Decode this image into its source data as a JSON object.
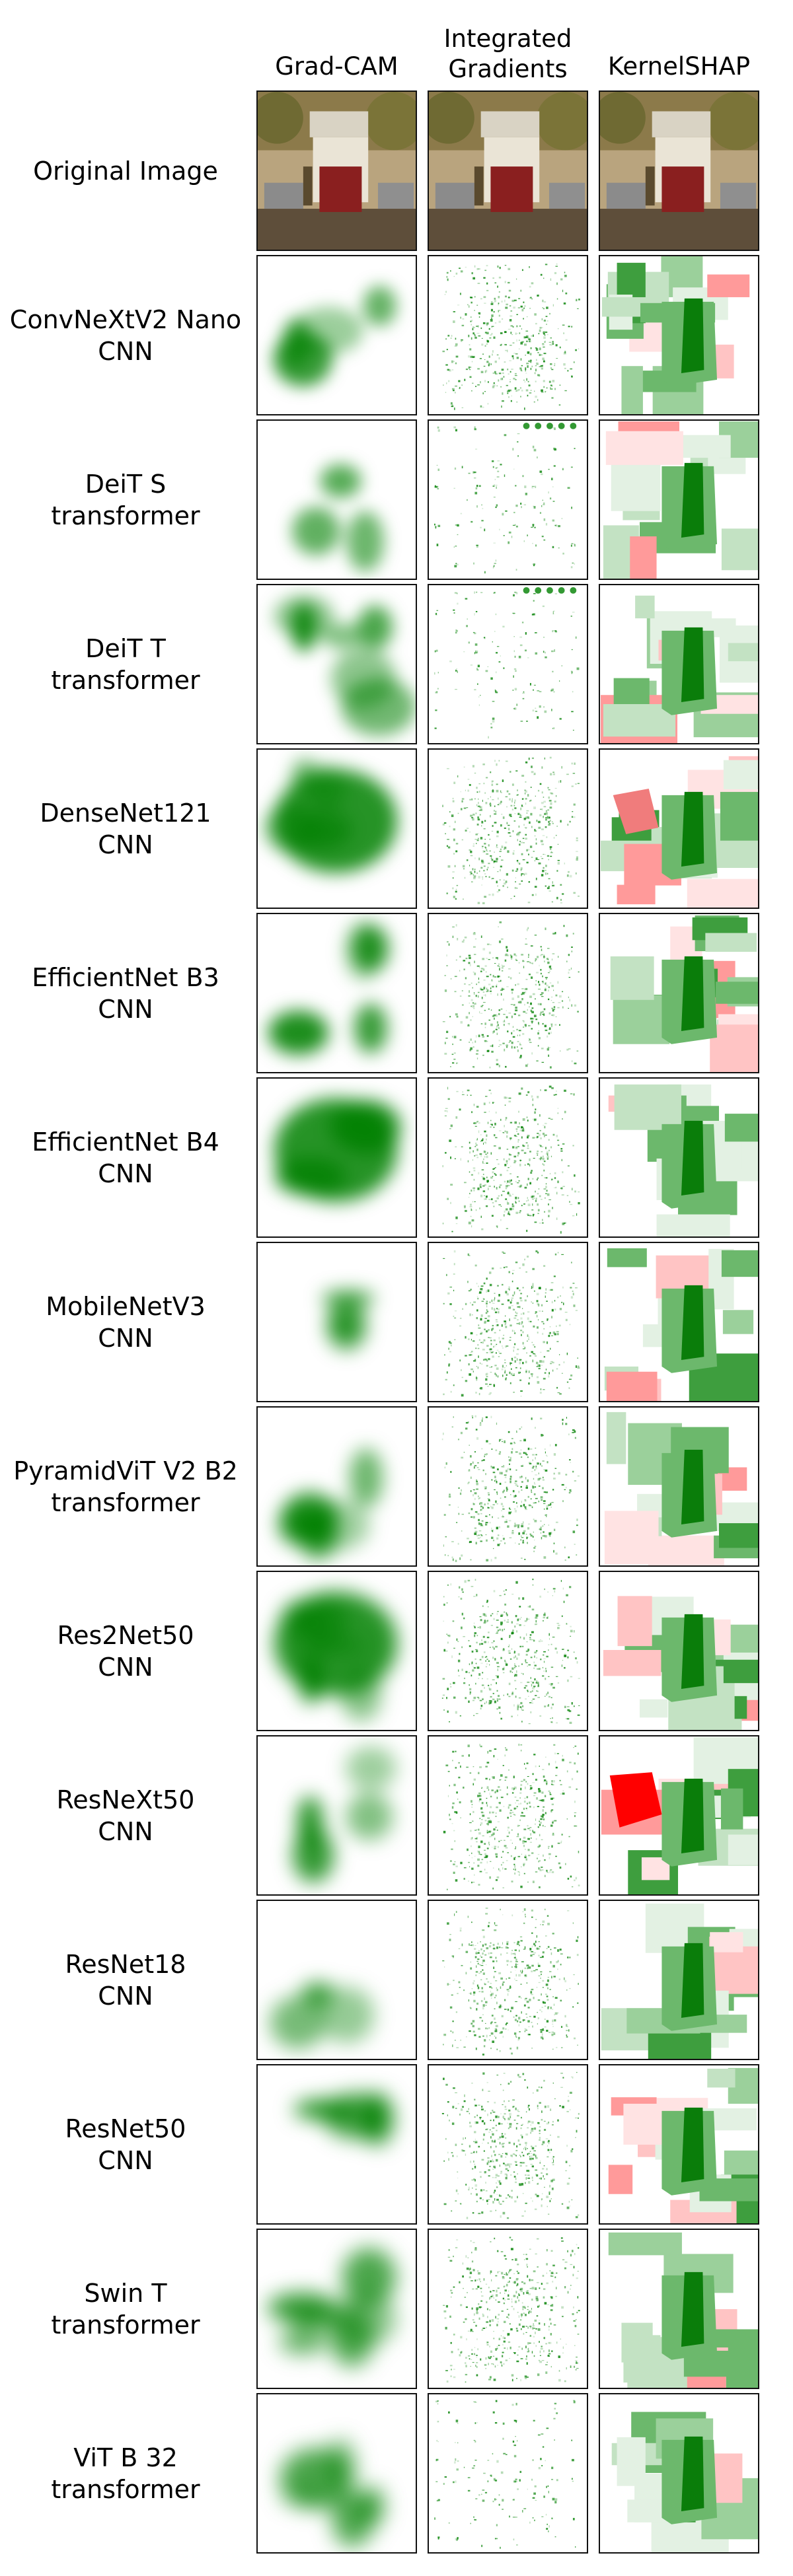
{
  "columns": [
    "Grad-CAM",
    "Integrated\nGradients",
    "KernelSHAP"
  ],
  "rows": [
    {
      "label": "Original Image"
    },
    {
      "label": "ConvNeXtV2 Nano\nCNN"
    },
    {
      "label": "DeiT S\ntransformer"
    },
    {
      "label": "DeiT T\ntransformer"
    },
    {
      "label": "DenseNet121\nCNN"
    },
    {
      "label": "EfficientNet B3\nCNN"
    },
    {
      "label": "EfficientNet B4\nCNN"
    },
    {
      "label": "MobileNetV3\nCNN"
    },
    {
      "label": "PyramidViT V2 B2\ntransformer"
    },
    {
      "label": "Res2Net50\nCNN"
    },
    {
      "label": "ResNeXt50\nCNN"
    },
    {
      "label": "ResNet18\nCNN"
    },
    {
      "label": "ResNet50\nCNN"
    },
    {
      "label": "Swin T\ntransformer"
    },
    {
      "label": "ViT B 32\ntransformer"
    }
  ],
  "colors": {
    "positive": "#008000",
    "negative": "#ff0000",
    "border": "#111111"
  }
}
